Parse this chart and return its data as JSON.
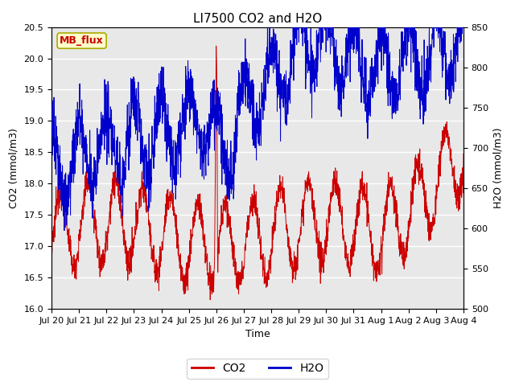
{
  "title": "LI7500 CO2 and H2O",
  "xlabel": "Time",
  "ylabel_left": "CO2 (mmol/m3)",
  "ylabel_right": "H2O (mmol/m3)",
  "co2_ylim": [
    16.0,
    20.5
  ],
  "h2o_ylim": [
    500,
    850
  ],
  "co2_yticks": [
    16.0,
    16.5,
    17.0,
    17.5,
    18.0,
    18.5,
    19.0,
    19.5,
    20.0,
    20.5
  ],
  "h2o_yticks": [
    500,
    550,
    600,
    650,
    700,
    750,
    800,
    850
  ],
  "xtick_labels": [
    "Jul 20",
    "Jul 21",
    "Jul 22",
    "Jul 23",
    "Jul 24",
    "Jul 25",
    "Jul 26",
    "Jul 27",
    "Jul 28",
    "Jul 29",
    "Jul 30",
    "Jul 31",
    "Aug 1",
    "Aug 2",
    "Aug 3",
    "Aug 4"
  ],
  "co2_color": "#cc0000",
  "h2o_color": "#0000cc",
  "legend_label_co2": "CO2",
  "legend_label_h2o": "H2O",
  "site_label": "MB_flux",
  "site_label_bg": "#ffffcc",
  "site_label_color": "#cc0000",
  "title_fontsize": 11,
  "axis_fontsize": 9,
  "tick_fontsize": 8,
  "legend_fontsize": 10,
  "background_color": "#ffffff",
  "plot_bg_color": "#e8e8e8",
  "grid_color": "#ffffff",
  "n_points": 2000
}
